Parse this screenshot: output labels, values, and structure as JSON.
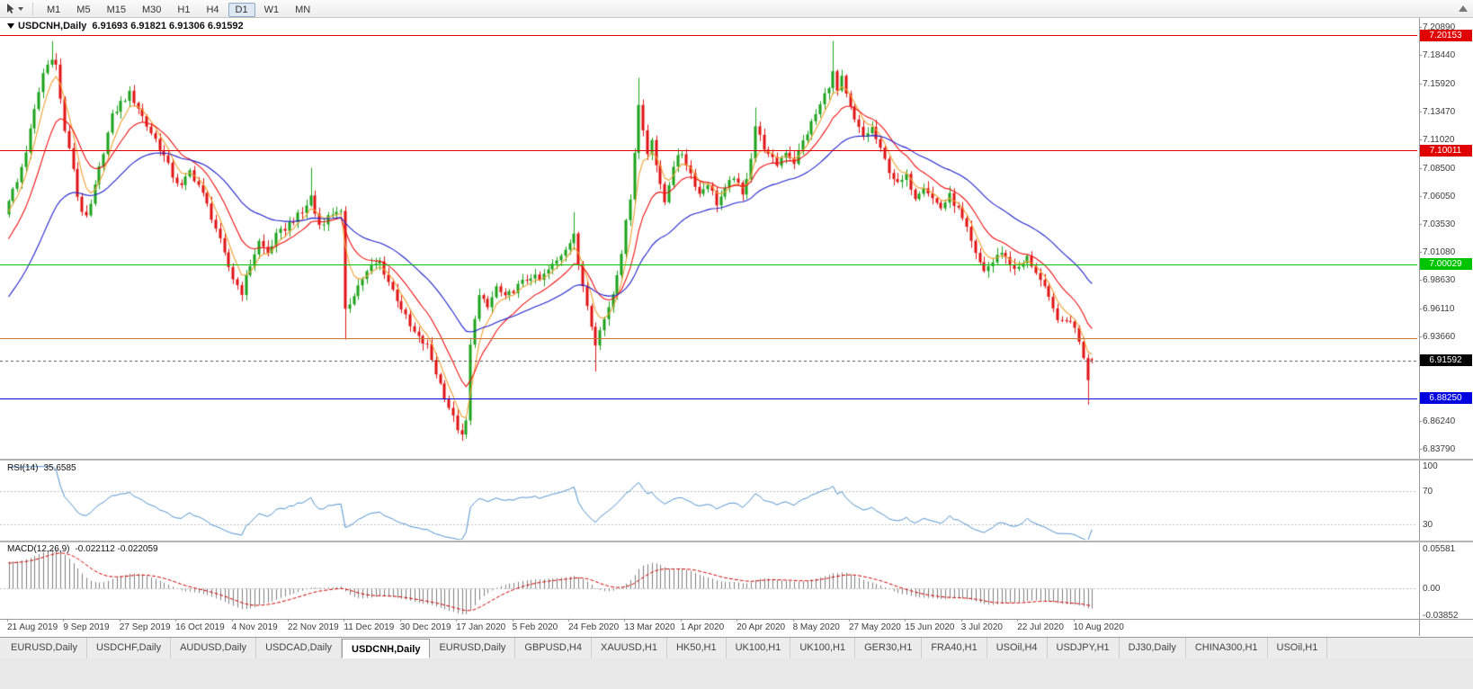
{
  "toolbar": {
    "timeframes": [
      "M1",
      "M5",
      "M15",
      "M30",
      "H1",
      "H4",
      "D1",
      "W1",
      "MN"
    ],
    "active_timeframe": "D1"
  },
  "chart": {
    "symbol_label": "USDCNH,Daily",
    "ohlc_text": "6.91693 6.91821 6.91306 6.91592",
    "ohlc": {
      "open": "6.91693",
      "high": "6.91821",
      "low": "6.91306",
      "close": "6.91592"
    },
    "price_ticks": [
      "7.20890",
      "7.18440",
      "7.15920",
      "7.13470",
      "7.11020",
      "7.08500",
      "7.06050",
      "7.03530",
      "7.01080",
      "6.98630",
      "6.96110",
      "6.93660",
      "6.86240",
      "6.83790"
    ],
    "hlines": [
      {
        "price": 7.20153,
        "label": "7.20153",
        "color": "#e00000",
        "boxed": true
      },
      {
        "price": 7.10011,
        "label": "7.10011",
        "color": "#e00000",
        "boxed": true
      },
      {
        "price": 7.00029,
        "label": "7.00029",
        "color": "#00c400",
        "boxed": true
      },
      {
        "price": 6.935,
        "label": "",
        "color": "#c87832",
        "boxed": false
      },
      {
        "price": 6.8825,
        "label": "6.88250",
        "color": "#0000e0",
        "boxed": true
      }
    ],
    "current_price": {
      "value": 6.91592,
      "label": "6.91592",
      "box_color": "#000000"
    },
    "dates": [
      "21 Aug 2019",
      "9 Sep 2019",
      "27 Sep 2019",
      "16 Oct 2019",
      "4 Nov 2019",
      "22 Nov 2019",
      "11 Dec 2019",
      "30 Dec 2019",
      "17 Jan 2020",
      "5 Feb 2020",
      "24 Feb 2020",
      "13 Mar 2020",
      "1 Apr 2020",
      "20 Apr 2020",
      "8 May 2020",
      "27 May 2020",
      "15 Jun 2020",
      "3 Jul 2020",
      "22 Jul 2020",
      "10 Aug 2020"
    ]
  },
  "rsi": {
    "name": "RSI(14)",
    "value_text": "35.6585",
    "color": "#4f93ce",
    "levels": [
      70,
      30
    ],
    "axis_ticks": [
      {
        "v": 100,
        "label": "100"
      },
      {
        "v": 70,
        "label": "70"
      },
      {
        "v": 30,
        "label": "30"
      }
    ]
  },
  "macd": {
    "name": "MACD(12,26,9)",
    "value_text": "-0.022112 -0.022059",
    "axis_ticks": [
      {
        "v": 0.05581,
        "label": "0.05581"
      },
      {
        "v": 0,
        "label": "0.00"
      },
      {
        "v": -0.03852,
        "label": "-0.03852"
      }
    ]
  },
  "tabs": {
    "active_index": 4,
    "items": [
      "EURUSD,Daily",
      "USDCHF,Daily",
      "AUDUSD,Daily",
      "USDCAD,Daily",
      "USDCNH,Daily",
      "EURUSD,Daily",
      "GBPUSD,H4",
      "XAUUSD,H1",
      "HK50,H1",
      "UK100,H1",
      "UK100,H1",
      "GER30,H1",
      "FRA40,H1",
      "USOil,H4",
      "USDJPY,H1",
      "DJ30,Daily",
      "CHINA300,H1",
      "USOil,H1"
    ],
    "active_label": "USDCNH,Daily"
  },
  "chart_data": {
    "type": "candlestick",
    "symbol": "USDCNH",
    "timeframe": "Daily",
    "bars": 252,
    "label_step": 13,
    "view_high": 7.215,
    "view_low": 6.831,
    "colors": {
      "bull": "#1ca31c",
      "bear": "#e01414"
    },
    "moving_averages": [
      {
        "period": 5,
        "color": "#f0a030"
      },
      {
        "period": 13,
        "color": "#f01010"
      },
      {
        "period": 34,
        "color": "#2020cc"
      }
    ],
    "indicators": {
      "rsi_period": 14,
      "macd": [
        12,
        26,
        9
      ]
    },
    "close_anchors": [
      [
        0,
        7.058
      ],
      [
        2,
        7.072
      ],
      [
        4,
        7.1
      ],
      [
        6,
        7.135
      ],
      [
        8,
        7.168
      ],
      [
        10,
        7.183
      ],
      [
        11,
        7.175
      ],
      [
        12,
        7.145
      ],
      [
        13,
        7.118
      ],
      [
        14,
        7.1
      ],
      [
        15,
        7.085
      ],
      [
        16,
        7.06
      ],
      [
        17,
        7.048
      ],
      [
        18,
        7.04
      ],
      [
        19,
        7.052
      ],
      [
        20,
        7.068
      ],
      [
        22,
        7.1
      ],
      [
        24,
        7.13
      ],
      [
        26,
        7.142
      ],
      [
        28,
        7.15
      ],
      [
        30,
        7.138
      ],
      [
        32,
        7.122
      ],
      [
        34,
        7.11
      ],
      [
        36,
        7.095
      ],
      [
        38,
        7.078
      ],
      [
        40,
        7.068
      ],
      [
        42,
        7.082
      ],
      [
        44,
        7.07
      ],
      [
        46,
        7.052
      ],
      [
        48,
        7.032
      ],
      [
        50,
        7.008
      ],
      [
        52,
        6.988
      ],
      [
        54,
        6.976
      ],
      [
        56,
        7.0
      ],
      [
        58,
        7.02
      ],
      [
        60,
        7.01
      ],
      [
        62,
        7.025
      ],
      [
        64,
        7.032
      ],
      [
        66,
        7.04
      ],
      [
        68,
        7.045
      ],
      [
        70,
        7.06
      ],
      [
        71,
        7.045
      ],
      [
        72,
        7.035
      ],
      [
        74,
        7.042
      ],
      [
        76,
        7.048
      ],
      [
        77,
        7.045
      ],
      [
        78,
        6.958
      ],
      [
        80,
        6.975
      ],
      [
        82,
        6.988
      ],
      [
        84,
        6.998
      ],
      [
        86,
        7.002
      ],
      [
        88,
        6.985
      ],
      [
        90,
        6.97
      ],
      [
        91,
        6.962
      ],
      [
        93,
        6.945
      ],
      [
        95,
        6.935
      ],
      [
        97,
        6.928
      ],
      [
        99,
        6.905
      ],
      [
        101,
        6.885
      ],
      [
        103,
        6.865
      ],
      [
        105,
        6.848
      ],
      [
        106,
        6.862
      ],
      [
        107,
        6.928
      ],
      [
        108,
        6.955
      ],
      [
        109,
        6.972
      ],
      [
        111,
        6.962
      ],
      [
        113,
        6.98
      ],
      [
        115,
        6.97
      ],
      [
        117,
        6.978
      ],
      [
        119,
        6.984
      ],
      [
        121,
        6.99
      ],
      [
        123,
        6.986
      ],
      [
        125,
        6.995
      ],
      [
        127,
        7.003
      ],
      [
        129,
        7.015
      ],
      [
        131,
        7.028
      ],
      [
        132,
        6.998
      ],
      [
        134,
        6.965
      ],
      [
        136,
        6.932
      ],
      [
        138,
        6.952
      ],
      [
        140,
        6.975
      ],
      [
        142,
        7.012
      ],
      [
        144,
        7.06
      ],
      [
        146,
        7.14
      ],
      [
        147,
        7.118
      ],
      [
        148,
        7.098
      ],
      [
        149,
        7.112
      ],
      [
        150,
        7.088
      ],
      [
        151,
        7.068
      ],
      [
        152,
        7.055
      ],
      [
        154,
        7.088
      ],
      [
        156,
        7.098
      ],
      [
        158,
        7.08
      ],
      [
        160,
        7.062
      ],
      [
        162,
        7.072
      ],
      [
        164,
        7.054
      ],
      [
        166,
        7.065
      ],
      [
        168,
        7.078
      ],
      [
        170,
        7.06
      ],
      [
        172,
        7.095
      ],
      [
        173,
        7.122
      ],
      [
        174,
        7.112
      ],
      [
        176,
        7.095
      ],
      [
        178,
        7.088
      ],
      [
        180,
        7.1
      ],
      [
        182,
        7.09
      ],
      [
        184,
        7.108
      ],
      [
        186,
        7.124
      ],
      [
        188,
        7.14
      ],
      [
        190,
        7.158
      ],
      [
        191,
        7.168
      ],
      [
        192,
        7.152
      ],
      [
        193,
        7.163
      ],
      [
        194,
        7.148
      ],
      [
        196,
        7.126
      ],
      [
        198,
        7.112
      ],
      [
        200,
        7.12
      ],
      [
        202,
        7.1
      ],
      [
        204,
        7.083
      ],
      [
        206,
        7.07
      ],
      [
        208,
        7.077
      ],
      [
        210,
        7.06
      ],
      [
        212,
        7.07
      ],
      [
        214,
        7.058
      ],
      [
        216,
        7.05
      ],
      [
        218,
        7.06
      ],
      [
        220,
        7.048
      ],
      [
        222,
        7.03
      ],
      [
        224,
        7.008
      ],
      [
        226,
        6.995
      ],
      [
        228,
        7.002
      ],
      [
        230,
        7.012
      ],
      [
        232,
        7.0
      ],
      [
        234,
        6.996
      ],
      [
        236,
        7.006
      ],
      [
        238,
        6.994
      ],
      [
        240,
        6.978
      ],
      [
        242,
        6.96
      ],
      [
        244,
        6.948
      ],
      [
        246,
        6.952
      ],
      [
        248,
        6.934
      ],
      [
        249,
        6.92
      ],
      [
        250,
        6.9
      ],
      [
        251,
        6.91592
      ]
    ],
    "wick_overrides": [
      {
        "i": 10,
        "high": 7.1963
      },
      {
        "i": 70,
        "high": 7.085
      },
      {
        "i": 78,
        "low": 6.934
      },
      {
        "i": 105,
        "low": 6.8452
      },
      {
        "i": 131,
        "high": 7.046
      },
      {
        "i": 136,
        "low": 6.906
      },
      {
        "i": 146,
        "high": 7.164
      },
      {
        "i": 173,
        "high": 7.138
      },
      {
        "i": 191,
        "high": 7.1965
      },
      {
        "i": 250,
        "low": 6.877
      }
    ],
    "last_bar": {
      "open": 6.91693,
      "high": 6.91821,
      "low": 6.91306,
      "close": 6.91592
    }
  }
}
